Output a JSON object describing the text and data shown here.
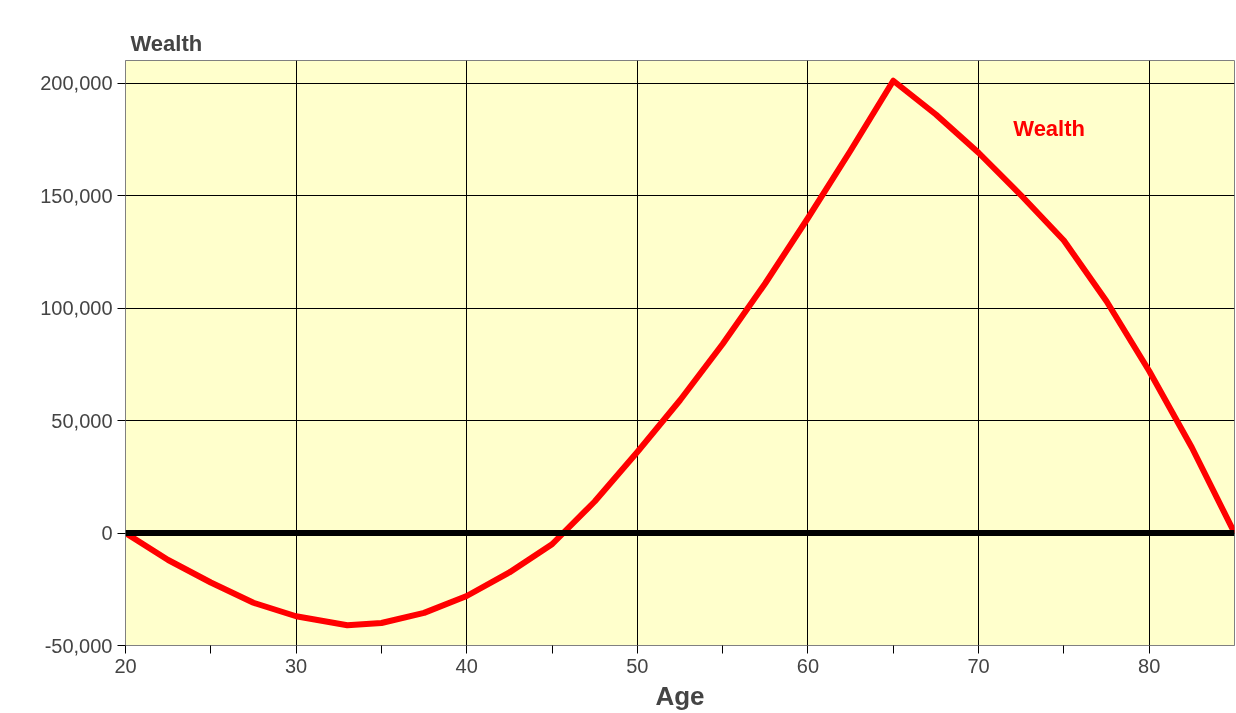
{
  "chart_data": {
    "type": "line",
    "title": "Wealth",
    "xlabel": "Age",
    "xlim": [
      20,
      85
    ],
    "ylim": [
      -50000,
      210000
    ],
    "xticks": [
      20,
      {
        "value": 25,
        "label": null
      },
      30,
      {
        "value": 35,
        "label": null
      },
      40,
      {
        "value": 45,
        "label": null
      },
      50,
      {
        "value": 55,
        "label": null
      },
      60,
      {
        "value": 65,
        "label": null
      },
      70,
      {
        "value": 75,
        "label": null
      },
      80
    ],
    "yticks": [
      {
        "value": -50000,
        "label": "-50,000"
      },
      0,
      {
        "value": 50000,
        "label": "50,000"
      },
      {
        "value": 100000,
        "label": "100,000"
      },
      {
        "value": 150000,
        "label": "150,000"
      },
      {
        "value": 200000,
        "label": "200,000"
      }
    ],
    "grid": true,
    "legend": false,
    "marker": "none",
    "line_style": "solid",
    "ref_lines": [
      {
        "axis": "y",
        "value": 0,
        "color": "#000000"
      }
    ],
    "series": [
      {
        "name": "Wealth",
        "color": "#ff0000",
        "x": [
          20,
          22.5,
          25,
          27.5,
          30,
          33,
          35,
          37.5,
          40,
          42.5,
          45,
          47.5,
          50,
          52.5,
          55,
          57.5,
          60,
          62.5,
          65,
          67.5,
          70,
          72.5,
          75,
          77.5,
          80,
          82.5,
          85
        ],
        "values": [
          0,
          -12000,
          -22000,
          -31000,
          -37000,
          -41000,
          -40000,
          -35500,
          -28000,
          -17500,
          -5000,
          14000,
          36000,
          59000,
          84000,
          111000,
          140000,
          170000,
          201000,
          186000,
          169000,
          150000,
          130000,
          103000,
          72000,
          38000,
          0
        ]
      }
    ]
  }
}
